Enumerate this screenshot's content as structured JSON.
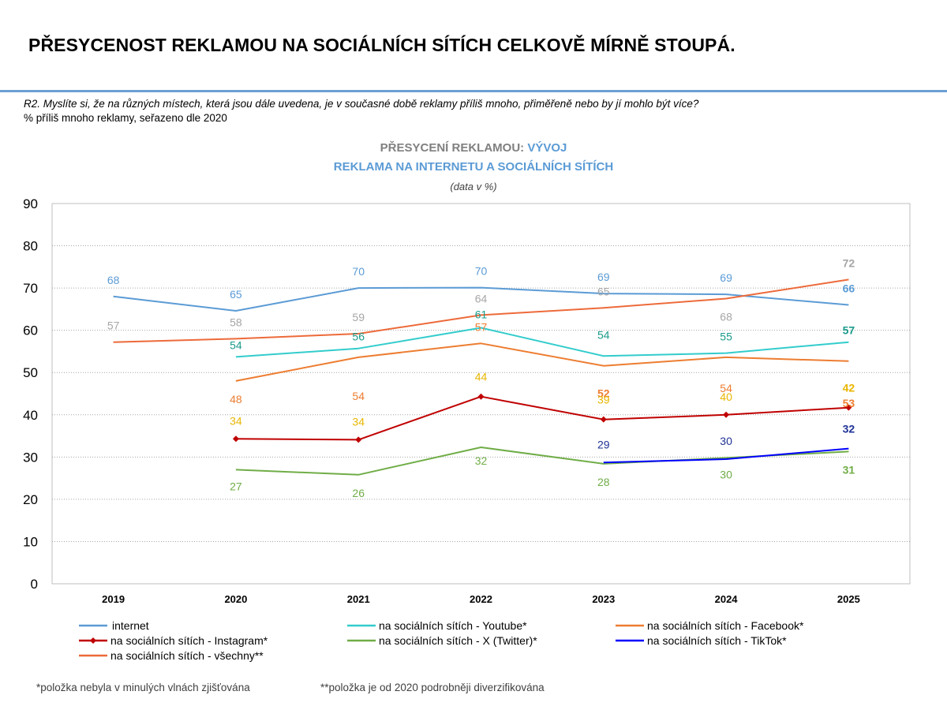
{
  "page": {
    "title": "PŘESYCENOST REKLAMOU NA SOCIÁLNÍCH SÍTÍCH CELKOVĚ MÍRNĚ STOUPÁ.",
    "question": "R2. Myslíte si, že na různých místech, která jsou dále uvedena, je v současné době reklamy příliš mnoho, přiměřeně nebo by jí mohlo být více?",
    "question_note": "% příliš mnoho reklamy, seřazeno dle 2020",
    "footnote_1": "*položka nebyla v minulých vlnách zjišťována",
    "footnote_2": "**položka je od 2020 podrobněji diverzifikována"
  },
  "chart_data": {
    "type": "line",
    "title_part1": "PŘESYCENÍ REKLAMOU: ",
    "title_part2": "VÝVOJ",
    "subtitle": "REKLAMA NA INTERNETU A SOCIÁLNÍCH SÍTÍCH",
    "unit_note": "(data v %)",
    "x": [
      "2019",
      "2020",
      "2021",
      "2022",
      "2023",
      "2024",
      "2025"
    ],
    "y_ticks": [
      "0",
      "10",
      "20",
      "30",
      "40",
      "50",
      "60",
      "70",
      "80",
      "90"
    ],
    "ylim": [
      0,
      90
    ],
    "grid": true,
    "legend_position": "bottom",
    "series": [
      {
        "name": "internet",
        "color": "#5b9bd5",
        "marker": false,
        "label_bold_last": true,
        "values": [
          68,
          64.6,
          70,
          70.1,
          68.7,
          68.5,
          66
        ],
        "labels": [
          "68",
          "65",
          "70",
          "70",
          "69",
          "69",
          "66"
        ]
      },
      {
        "name": "na sociálních sítích - Youtube*",
        "color": "#33cccc",
        "marker": false,
        "label_color": "#1a9b8c",
        "label_bold_last": true,
        "values": [
          null,
          53.7,
          55.7,
          60.6,
          53.9,
          54.6,
          57.2
        ],
        "labels": [
          "",
          "54",
          "56",
          "61",
          "54",
          "55",
          "57"
        ]
      },
      {
        "name": "na sociálních sítích - Facebook*",
        "color": "#ed7d31",
        "marker": false,
        "label_bold_last": true,
        "label_bold_2023": true,
        "values": [
          null,
          48,
          53.6,
          56.9,
          51.6,
          53.6,
          52.7
        ],
        "labels": [
          "",
          "48",
          "54",
          "57",
          "52",
          "54",
          "53"
        ]
      },
      {
        "name": "na sociálních sítích - Instagram*",
        "color": "#c00000",
        "marker": true,
        "label_color": "#e8b600",
        "label_bold_last": true,
        "values": [
          null,
          34.3,
          34.1,
          44.3,
          38.9,
          40,
          41.7
        ],
        "labels": [
          "",
          "34",
          "34",
          "44",
          "39",
          "40",
          "42"
        ]
      },
      {
        "name": "na sociálních sítích - X (Twitter)*",
        "color": "#70ad47",
        "marker": false,
        "label_bold_last": true,
        "values": [
          null,
          27,
          25.8,
          32.3,
          28.4,
          29.8,
          31.3
        ],
        "labels": [
          "",
          "27",
          "26",
          "32",
          "28",
          "30",
          "31"
        ]
      },
      {
        "name": "na sociálních sítích - TikTok*",
        "color": "#0000ff",
        "marker": false,
        "label_color": "#1f3296",
        "label_bold_last": true,
        "values": [
          null,
          null,
          null,
          null,
          28.7,
          29.5,
          32
        ],
        "labels": [
          "",
          "",
          "",
          "",
          "29",
          "30",
          "32"
        ]
      },
      {
        "name": "na sociálních sítích - všechny**",
        "color": "#ed6a3a",
        "marker": false,
        "label_color": "#a6a6a6",
        "label_bold_last": true,
        "values": [
          57.2,
          58,
          59.2,
          63.6,
          65.3,
          67.5,
          72
        ],
        "labels": [
          "57",
          "58",
          "59",
          "64",
          "65",
          "68",
          "72"
        ]
      }
    ]
  }
}
